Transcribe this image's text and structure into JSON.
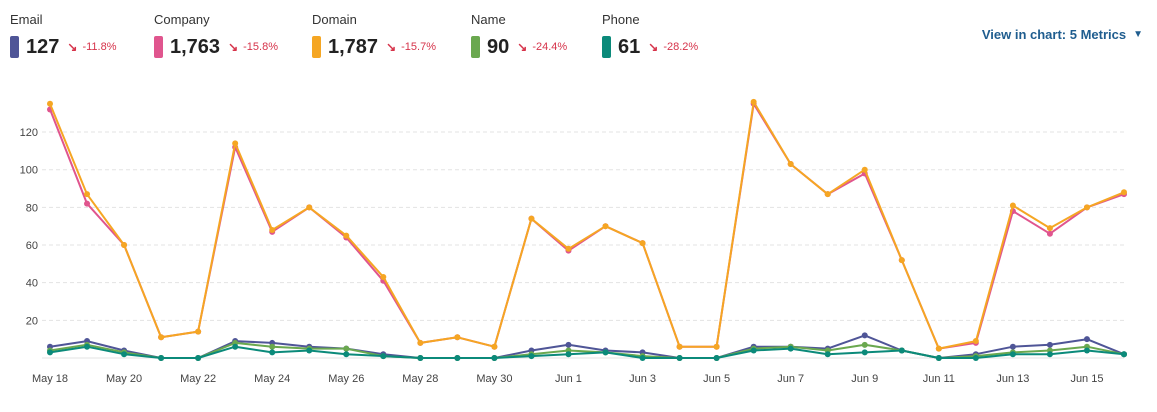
{
  "header": {
    "view_in_chart_label": "View in chart: 5 Metrics",
    "metrics": [
      {
        "label": "Email",
        "value": "127",
        "change": "-11.8%",
        "color": "#4f5597"
      },
      {
        "label": "Company",
        "value": "1,763",
        "change": "-15.8%",
        "color": "#e0558e"
      },
      {
        "label": "Domain",
        "value": "1,787",
        "change": "-15.7%",
        "color": "#f5a623"
      },
      {
        "label": "Name",
        "value": "90",
        "change": "-24.4%",
        "color": "#6aa84f"
      },
      {
        "label": "Phone",
        "value": "61",
        "change": "-28.2%",
        "color": "#0b8a7a"
      }
    ]
  },
  "chart_data": {
    "type": "line",
    "x": [
      "May 18",
      "May 19",
      "May 20",
      "May 21",
      "May 22",
      "May 23",
      "May 24",
      "May 25",
      "May 26",
      "May 27",
      "May 28",
      "May 29",
      "May 30",
      "May 31",
      "Jun 1",
      "Jun 2",
      "Jun 3",
      "Jun 4",
      "Jun 5",
      "Jun 6",
      "Jun 7",
      "Jun 8",
      "Jun 9",
      "Jun 10",
      "Jun 11",
      "Jun 12",
      "Jun 13",
      "Jun 14",
      "Jun 15",
      "Jun 16"
    ],
    "x_tick_labels": [
      "May 18",
      "May 20",
      "May 22",
      "May 24",
      "May 26",
      "May 28",
      "May 30",
      "Jun 1",
      "Jun 3",
      "Jun 5",
      "Jun 7",
      "Jun 9",
      "Jun 11",
      "Jun 13",
      "Jun 15"
    ],
    "y_ticks": [
      20,
      40,
      60,
      80,
      100,
      120
    ],
    "ylim": [
      0,
      138
    ],
    "grid": true,
    "series": [
      {
        "name": "Email",
        "color": "#4f5597",
        "values": [
          6,
          9,
          4,
          0,
          0,
          9,
          8,
          6,
          5,
          2,
          0,
          0,
          0,
          4,
          7,
          4,
          3,
          0,
          0,
          6,
          6,
          5,
          12,
          4,
          0,
          2,
          6,
          7,
          10,
          2
        ]
      },
      {
        "name": "Name",
        "color": "#6aa84f",
        "values": [
          4,
          7,
          3,
          0,
          0,
          8,
          6,
          5,
          5,
          1,
          0,
          0,
          0,
          2,
          4,
          3,
          1,
          0,
          0,
          5,
          6,
          4,
          7,
          4,
          0,
          1,
          3,
          4,
          6,
          2
        ]
      },
      {
        "name": "Phone",
        "color": "#0b8a7a",
        "values": [
          3,
          6,
          2,
          0,
          0,
          6,
          3,
          4,
          2,
          1,
          0,
          0,
          0,
          1,
          2,
          3,
          0,
          0,
          0,
          4,
          5,
          2,
          3,
          4,
          0,
          0,
          2,
          2,
          4,
          2
        ]
      },
      {
        "name": "Company",
        "color": "#e0558e",
        "values": [
          132,
          82,
          60,
          11,
          14,
          112,
          67,
          80,
          64,
          41,
          8,
          11,
          6,
          74,
          57,
          70,
          61,
          6,
          6,
          135,
          103,
          87,
          98,
          52,
          5,
          8,
          78,
          66,
          80,
          87
        ]
      },
      {
        "name": "Domain",
        "color": "#f5a623",
        "values": [
          135,
          87,
          60,
          11,
          14,
          114,
          68,
          80,
          65,
          43,
          8,
          11,
          6,
          74,
          58,
          70,
          61,
          6,
          6,
          136,
          103,
          87,
          100,
          52,
          5,
          9,
          81,
          69,
          80,
          88
        ]
      }
    ]
  }
}
